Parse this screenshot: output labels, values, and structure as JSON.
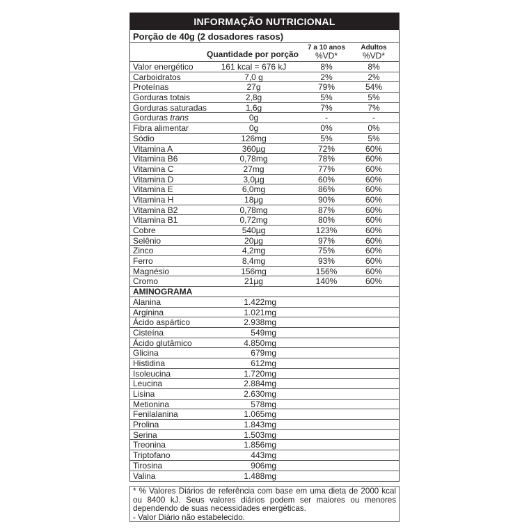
{
  "title": "INFORMAÇÃO NUTRICIONAL",
  "portion": "Porção de 40g (2 dosadores rasos)",
  "header": {
    "quantity": "Quantidade por porção",
    "kids_group": "7 a 10 anos",
    "kids_vd": "%VD*",
    "adults_group": "Adultos",
    "adults_vd": "%VD*"
  },
  "nutrients": [
    {
      "name": "Valor energético",
      "qty": "161 kcal = 676 kJ",
      "vd_kids": "8%",
      "vd_adults": "8%"
    },
    {
      "name": "Carboidratos",
      "qty": "7,0 g",
      "vd_kids": "2%",
      "vd_adults": "2%"
    },
    {
      "name": "Proteínas",
      "qty": "27g",
      "vd_kids": "79%",
      "vd_adults": "54%"
    },
    {
      "name": "Gorduras totais",
      "qty": "2,8g",
      "vd_kids": "5%",
      "vd_adults": "5%"
    },
    {
      "name": "Gorduras saturadas",
      "qty": "1,6g",
      "vd_kids": "7%",
      "vd_adults": "7%"
    },
    {
      "name": "Gorduras ",
      "name_italic": "trans",
      "qty": "0g",
      "vd_kids": "-",
      "vd_adults": "-"
    },
    {
      "name": "Fibra alimentar",
      "qty": "0g",
      "vd_kids": "0%",
      "vd_adults": "0%"
    },
    {
      "name": "Sódio",
      "qty": "126mg",
      "vd_kids": "5%",
      "vd_adults": "5%"
    },
    {
      "name": "Vitamina A",
      "qty": "360µg",
      "vd_kids": "72%",
      "vd_adults": "60%"
    },
    {
      "name": "Vitamina B6",
      "qty": "0,78mg",
      "vd_kids": "78%",
      "vd_adults": "60%"
    },
    {
      "name": "Vitamina C",
      "qty": "27mg",
      "vd_kids": "77%",
      "vd_adults": "60%"
    },
    {
      "name": "Vitamina D",
      "qty": "3,0µg",
      "vd_kids": "60%",
      "vd_adults": "60%"
    },
    {
      "name": "Vitamina E",
      "qty": "6,0mg",
      "vd_kids": "86%",
      "vd_adults": "60%"
    },
    {
      "name": "Vitamina H",
      "qty": "18µg",
      "vd_kids": "90%",
      "vd_adults": "60%"
    },
    {
      "name": "Vitamina B2",
      "qty": "0,78mg",
      "vd_kids": "87%",
      "vd_adults": "60%"
    },
    {
      "name": "Vitamina B1",
      "qty": "0,72mg",
      "vd_kids": "80%",
      "vd_adults": "60%"
    },
    {
      "name": "Cobre",
      "qty": "540µg",
      "vd_kids": "123%",
      "vd_adults": "60%"
    },
    {
      "name": "Selênio",
      "qty": "20µg",
      "vd_kids": "97%",
      "vd_adults": "60%"
    },
    {
      "name": "Zinco",
      "qty": "4,2mg",
      "vd_kids": "75%",
      "vd_adults": "60%"
    },
    {
      "name": "Ferro",
      "qty": "8,4mg",
      "vd_kids": "93%",
      "vd_adults": "60%"
    },
    {
      "name": "Magnésio",
      "qty": "156mg",
      "vd_kids": "156%",
      "vd_adults": "60%"
    },
    {
      "name": "Cromo",
      "qty": "21µg",
      "vd_kids": "140%",
      "vd_adults": "60%"
    }
  ],
  "aminogram": {
    "title": "AMINOGRAMA",
    "items": [
      {
        "name": "Alanina",
        "qty": "1.422mg"
      },
      {
        "name": "Arginina",
        "qty": "1.021mg"
      },
      {
        "name": "Ácido aspártico",
        "qty": "2.938mg"
      },
      {
        "name": "Cisteína",
        "qty": "549mg"
      },
      {
        "name": "Ácido glutâmico",
        "qty": "4.850mg"
      },
      {
        "name": "Glicina",
        "qty": "679mg"
      },
      {
        "name": "Histidina",
        "qty": "612mg"
      },
      {
        "name": "Isoleucina",
        "qty": "1.720mg"
      },
      {
        "name": "Leucina",
        "qty": "2.884mg"
      },
      {
        "name": "Lisina",
        "qty": "2.630mg"
      },
      {
        "name": "Metionina",
        "qty": "578mg"
      },
      {
        "name": "Fenilalanina",
        "qty": "1.065mg"
      },
      {
        "name": "Prolina",
        "qty": "1.843mg"
      },
      {
        "name": "Serina",
        "qty": "1.503mg"
      },
      {
        "name": "Treonina",
        "qty": "1.856mg"
      },
      {
        "name": "Triptofano",
        "qty": "443mg"
      },
      {
        "name": "Tirosina",
        "qty": "906mg"
      },
      {
        "name": "Valina",
        "qty": "1.488mg"
      }
    ]
  },
  "footnote": {
    "line1": "* % Valores Diários de referência com base em uma dieta de 2000 kcal ou 8400 kJ. Seus valores diários podem ser maiores ou menores dependendo de suas necessidades energéticas.",
    "line2": "- Valor Diário não estabelecido."
  }
}
